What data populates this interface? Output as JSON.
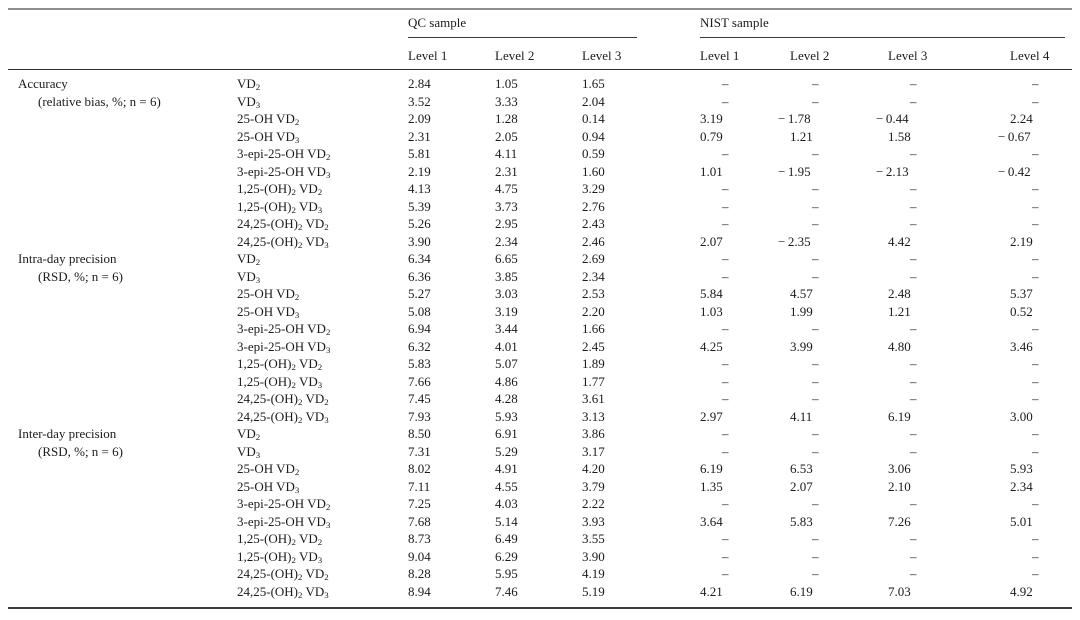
{
  "table": {
    "missing_marker": "–",
    "groups": [
      {
        "label": "QC sample",
        "levels": [
          "Level 1",
          "Level 2",
          "Level 3"
        ]
      },
      {
        "label": "NIST sample",
        "levels": [
          "Level 1",
          "Level 2",
          "Level 3",
          "Level 4"
        ]
      }
    ],
    "sections": [
      {
        "label": "Accuracy",
        "sublabel": "(relative bias, %; n = 6)",
        "rows": [
          {
            "analyte": "VD~2~",
            "qc": [
              "2.84",
              "1.05",
              "1.65"
            ],
            "nist": [
              "–",
              "–",
              "–",
              "–"
            ]
          },
          {
            "analyte": "VD~3~",
            "qc": [
              "3.52",
              "3.33",
              "2.04"
            ],
            "nist": [
              "–",
              "–",
              "–",
              "–"
            ]
          },
          {
            "analyte": "25-OH VD~2~",
            "qc": [
              "2.09",
              "1.28",
              "0.14"
            ],
            "nist": [
              "3.19",
              "− 1.78",
              "− 0.44",
              "2.24"
            ]
          },
          {
            "analyte": "25-OH VD~3~",
            "qc": [
              "2.31",
              "2.05",
              "0.94"
            ],
            "nist": [
              "0.79",
              "1.21",
              "1.58",
              "− 0.67"
            ]
          },
          {
            "analyte": "3-epi-25-OH VD~2~",
            "qc": [
              "5.81",
              "4.11",
              "0.59"
            ],
            "nist": [
              "–",
              "–",
              "–",
              "–"
            ]
          },
          {
            "analyte": "3-epi-25-OH VD~3~",
            "qc": [
              "2.19",
              "2.31",
              "1.60"
            ],
            "nist": [
              "1.01",
              "− 1.95",
              "− 2.13",
              "− 0.42"
            ]
          },
          {
            "analyte": "1,25-(OH)~2~ VD~2~",
            "qc": [
              "4.13",
              "4.75",
              "3.29"
            ],
            "nist": [
              "–",
              "–",
              "–",
              "–"
            ]
          },
          {
            "analyte": "1,25-(OH)~2~ VD~3~",
            "qc": [
              "5.39",
              "3.73",
              "2.76"
            ],
            "nist": [
              "–",
              "–",
              "–",
              "–"
            ]
          },
          {
            "analyte": "24,25-(OH)~2~ VD~2~",
            "qc": [
              "5.26",
              "2.95",
              "2.43"
            ],
            "nist": [
              "–",
              "–",
              "–",
              "–"
            ]
          },
          {
            "analyte": "24,25-(OH)~2~ VD~3~",
            "qc": [
              "3.90",
              "2.34",
              "2.46"
            ],
            "nist": [
              "2.07",
              "− 2.35",
              "4.42",
              "2.19"
            ]
          }
        ]
      },
      {
        "label": "Intra-day precision",
        "sublabel": "(RSD, %; n = 6)",
        "rows": [
          {
            "analyte": "VD~2~",
            "qc": [
              "6.34",
              "6.65",
              "2.69"
            ],
            "nist": [
              "–",
              "–",
              "–",
              "–"
            ]
          },
          {
            "analyte": "VD~3~",
            "qc": [
              "6.36",
              "3.85",
              "2.34"
            ],
            "nist": [
              "–",
              "–",
              "–",
              "–"
            ]
          },
          {
            "analyte": "25-OH VD~2~",
            "qc": [
              "5.27",
              "3.03",
              "2.53"
            ],
            "nist": [
              "5.84",
              "4.57",
              "2.48",
              "5.37"
            ]
          },
          {
            "analyte": "25-OH VD~3~",
            "qc": [
              "5.08",
              "3.19",
              "2.20"
            ],
            "nist": [
              "1.03",
              "1.99",
              "1.21",
              "0.52"
            ]
          },
          {
            "analyte": "3-epi-25-OH VD~2~",
            "qc": [
              "6.94",
              "3.44",
              "1.66"
            ],
            "nist": [
              "–",
              "–",
              "–",
              "–"
            ]
          },
          {
            "analyte": "3-epi-25-OH VD~3~",
            "qc": [
              "6.32",
              "4.01",
              "2.45"
            ],
            "nist": [
              "4.25",
              "3.99",
              "4.80",
              "3.46"
            ]
          },
          {
            "analyte": "1,25-(OH)~2~ VD~2~",
            "qc": [
              "5.83",
              "5.07",
              "1.89"
            ],
            "nist": [
              "–",
              "–",
              "–",
              "–"
            ]
          },
          {
            "analyte": "1,25-(OH)~2~ VD~3~",
            "qc": [
              "7.66",
              "4.86",
              "1.77"
            ],
            "nist": [
              "–",
              "–",
              "–",
              "–"
            ]
          },
          {
            "analyte": "24,25-(OH)~2~ VD~2~",
            "qc": [
              "7.45",
              "4.28",
              "3.61"
            ],
            "nist": [
              "–",
              "–",
              "–",
              "–"
            ]
          },
          {
            "analyte": "24,25-(OH)~2~ VD~3~",
            "qc": [
              "7.93",
              "5.93",
              "3.13"
            ],
            "nist": [
              "2.97",
              "4.11",
              "6.19",
              "3.00"
            ]
          }
        ]
      },
      {
        "label": "Inter-day precision",
        "sublabel": "(RSD, %; n = 6)",
        "rows": [
          {
            "analyte": "VD~2~",
            "qc": [
              "8.50",
              "6.91",
              "3.86"
            ],
            "nist": [
              "–",
              "–",
              "–",
              "–"
            ]
          },
          {
            "analyte": "VD~3~",
            "qc": [
              "7.31",
              "5.29",
              "3.17"
            ],
            "nist": [
              "–",
              "–",
              "–",
              "–"
            ]
          },
          {
            "analyte": "25-OH VD~2~",
            "qc": [
              "8.02",
              "4.91",
              "4.20"
            ],
            "nist": [
              "6.19",
              "6.53",
              "3.06",
              "5.93"
            ]
          },
          {
            "analyte": "25-OH VD~3~",
            "qc": [
              "7.11",
              "4.55",
              "3.79"
            ],
            "nist": [
              "1.35",
              "2.07",
              "2.10",
              "2.34"
            ]
          },
          {
            "analyte": "3-epi-25-OH VD~2~",
            "qc": [
              "7.25",
              "4.03",
              "2.22"
            ],
            "nist": [
              "–",
              "–",
              "–",
              "–"
            ]
          },
          {
            "analyte": "3-epi-25-OH VD~3~",
            "qc": [
              "7.68",
              "5.14",
              "3.93"
            ],
            "nist": [
              "3.64",
              "5.83",
              "7.26",
              "5.01"
            ]
          },
          {
            "analyte": "1,25-(OH)~2~ VD~2~",
            "qc": [
              "8.73",
              "6.49",
              "3.55"
            ],
            "nist": [
              "–",
              "–",
              "–",
              "–"
            ]
          },
          {
            "analyte": "1,25-(OH)~2~ VD~3~",
            "qc": [
              "9.04",
              "6.29",
              "3.90"
            ],
            "nist": [
              "–",
              "–",
              "–",
              "–"
            ]
          },
          {
            "analyte": "24,25-(OH)~2~ VD~2~",
            "qc": [
              "8.28",
              "5.95",
              "4.19"
            ],
            "nist": [
              "–",
              "–",
              "–",
              "–"
            ]
          },
          {
            "analyte": "24,25-(OH)~2~ VD~3~",
            "qc": [
              "8.94",
              "7.46",
              "5.19"
            ],
            "nist": [
              "4.21",
              "6.19",
              "7.03",
              "4.92"
            ]
          }
        ]
      }
    ]
  }
}
